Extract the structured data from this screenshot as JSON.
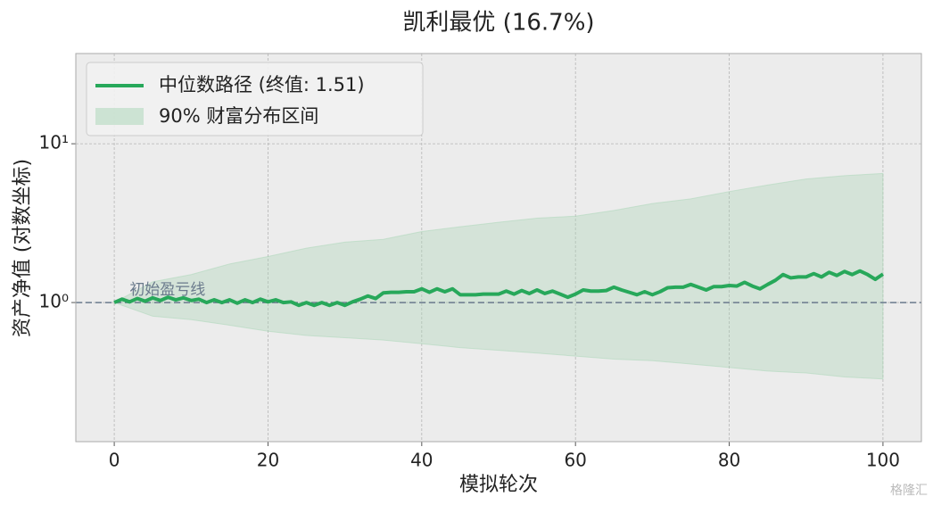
{
  "chart_data": {
    "type": "line",
    "title": "凯利最优 (16.7%)",
    "x_label": "模拟轮次",
    "y_label": "资产净值 (对数坐标)",
    "log_y": true,
    "grid": true,
    "legend_position": "upper left",
    "x": [
      0,
      1,
      2,
      3,
      4,
      5,
      6,
      7,
      8,
      9,
      10,
      11,
      12,
      13,
      14,
      15,
      16,
      17,
      18,
      19,
      20,
      21,
      22,
      23,
      24,
      25,
      26,
      27,
      28,
      29,
      30,
      31,
      32,
      33,
      34,
      35,
      36,
      37,
      38,
      39,
      40,
      41,
      42,
      43,
      44,
      45,
      46,
      47,
      48,
      49,
      50,
      51,
      52,
      53,
      54,
      55,
      56,
      57,
      58,
      59,
      60,
      61,
      62,
      63,
      64,
      65,
      66,
      67,
      68,
      69,
      70,
      71,
      72,
      73,
      74,
      75,
      76,
      77,
      78,
      79,
      80,
      81,
      82,
      83,
      84,
      85,
      86,
      87,
      88,
      89,
      90,
      91,
      92,
      93,
      94,
      95,
      96,
      97,
      98,
      99,
      100
    ],
    "series": [
      {
        "name": "中位数路径 (终值: 1.51)",
        "color": "#27a85a",
        "values": [
          1.0,
          1.05,
          1.01,
          1.06,
          1.02,
          1.07,
          1.03,
          1.08,
          1.04,
          1.07,
          1.03,
          1.05,
          1.0,
          1.04,
          1.0,
          1.04,
          0.99,
          1.04,
          1.0,
          1.05,
          1.01,
          1.04,
          1.0,
          1.01,
          0.96,
          1.0,
          0.96,
          1.0,
          0.96,
          1.0,
          0.96,
          1.01,
          1.05,
          1.1,
          1.06,
          1.15,
          1.16,
          1.16,
          1.17,
          1.17,
          1.22,
          1.16,
          1.22,
          1.17,
          1.22,
          1.12,
          1.12,
          1.12,
          1.13,
          1.13,
          1.13,
          1.18,
          1.13,
          1.19,
          1.14,
          1.2,
          1.14,
          1.18,
          1.13,
          1.08,
          1.13,
          1.2,
          1.18,
          1.18,
          1.19,
          1.25,
          1.2,
          1.16,
          1.12,
          1.17,
          1.12,
          1.17,
          1.24,
          1.25,
          1.25,
          1.3,
          1.25,
          1.2,
          1.26,
          1.26,
          1.28,
          1.27,
          1.34,
          1.27,
          1.22,
          1.3,
          1.38,
          1.5,
          1.43,
          1.45,
          1.45,
          1.52,
          1.45,
          1.55,
          1.48,
          1.57,
          1.5,
          1.58,
          1.5,
          1.4,
          1.51
        ]
      }
    ],
    "band": {
      "name": "90% 财富分布区间",
      "color": "#a8d5b5",
      "x": [
        0,
        5,
        10,
        15,
        20,
        25,
        30,
        35,
        40,
        45,
        50,
        55,
        60,
        65,
        70,
        75,
        80,
        85,
        90,
        95,
        100
      ],
      "upper": [
        1.0,
        1.35,
        1.5,
        1.75,
        1.95,
        2.2,
        2.4,
        2.5,
        2.8,
        3.0,
        3.2,
        3.4,
        3.5,
        3.8,
        4.2,
        4.5,
        5.0,
        5.5,
        6.0,
        6.3,
        6.5
      ],
      "lower": [
        1.0,
        0.82,
        0.78,
        0.72,
        0.66,
        0.62,
        0.6,
        0.58,
        0.55,
        0.52,
        0.5,
        0.48,
        0.46,
        0.44,
        0.43,
        0.41,
        0.39,
        0.37,
        0.36,
        0.34,
        0.33
      ]
    },
    "reference_line": {
      "value": 1,
      "label": "初始盈亏线",
      "color": "#6a7a8c"
    },
    "xlim": [
      -5,
      105
    ],
    "ylim": [
      0.133,
      37
    ],
    "xticks": [
      0,
      20,
      40,
      60,
      80,
      100
    ],
    "yticks": [
      {
        "value": 1,
        "label": "10⁰"
      },
      {
        "value": 10,
        "label": "10¹"
      }
    ],
    "watermark": "格隆汇"
  }
}
